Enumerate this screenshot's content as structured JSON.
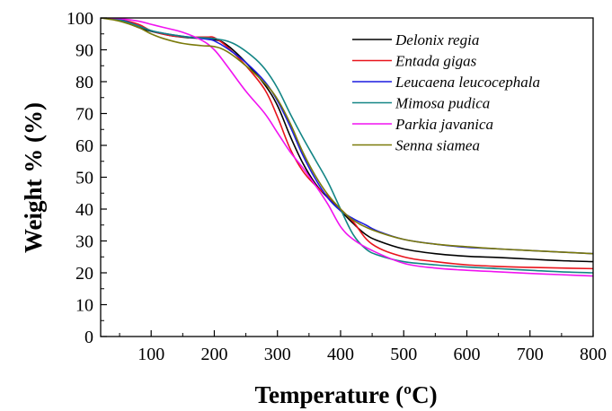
{
  "chart_data": {
    "type": "line",
    "title": "",
    "xlabel": "Temperature (ºC)",
    "ylabel": "Weight % (%)",
    "xlim": [
      20,
      800
    ],
    "ylim": [
      0,
      100
    ],
    "xticks": [
      100,
      200,
      300,
      400,
      500,
      600,
      700,
      800
    ],
    "yticks": [
      0,
      10,
      20,
      30,
      40,
      50,
      60,
      70,
      80,
      90,
      100
    ],
    "grid": false,
    "legend_position": "top-right",
    "series": [
      {
        "name": "Delonix regia",
        "color": "#000000",
        "x": [
          20,
          50,
          80,
          100,
          130,
          160,
          200,
          220,
          250,
          280,
          300,
          320,
          340,
          360,
          380,
          400,
          420,
          440,
          460,
          500,
          550,
          600,
          650,
          700,
          750,
          800
        ],
        "y": [
          100,
          99.3,
          97,
          95.8,
          94.5,
          93.8,
          93.2,
          91.5,
          86,
          79,
          72.5,
          63,
          54.5,
          48,
          43.5,
          39.5,
          35.5,
          32,
          30,
          27.5,
          26,
          25.2,
          24.8,
          24.3,
          23.8,
          23.5
        ]
      },
      {
        "name": "Entada gigas",
        "color": "#e8141c",
        "x": [
          20,
          50,
          80,
          100,
          130,
          160,
          190,
          200,
          220,
          250,
          280,
          300,
          320,
          340,
          360,
          380,
          400,
          420,
          450,
          500,
          550,
          600,
          650,
          700,
          750,
          800
        ],
        "y": [
          100,
          99.5,
          98,
          96,
          94.5,
          94,
          94,
          93.8,
          91,
          85,
          77.5,
          69,
          59,
          52,
          47.5,
          44,
          40,
          36,
          29,
          25,
          23.5,
          22.5,
          22,
          21.7,
          21.5,
          21.3
        ]
      },
      {
        "name": "Leucaena leucocephala",
        "color": "#1c1ce0",
        "x": [
          20,
          50,
          80,
          100,
          130,
          160,
          190,
          200,
          220,
          250,
          280,
          300,
          320,
          340,
          360,
          380,
          400,
          420,
          440,
          460,
          500,
          550,
          600,
          650,
          700,
          750,
          800
        ],
        "y": [
          100,
          99.5,
          97.5,
          96,
          94.8,
          94,
          93.3,
          92.8,
          90.5,
          86,
          80,
          74,
          66,
          57,
          49.5,
          43.5,
          39.5,
          37,
          35,
          33,
          30.5,
          29,
          28,
          27.5,
          27,
          26.5,
          26
        ]
      },
      {
        "name": "Mimosa pudica",
        "color": "#138585",
        "x": [
          20,
          50,
          80,
          100,
          130,
          160,
          200,
          230,
          260,
          280,
          300,
          320,
          340,
          360,
          380,
          400,
          420,
          440,
          460,
          500,
          550,
          600,
          650,
          700,
          750,
          800
        ],
        "y": [
          100,
          99.3,
          97.5,
          96,
          94.8,
          94,
          93.5,
          92,
          88,
          84,
          78,
          70,
          62.5,
          55.5,
          48.5,
          40,
          32,
          27.5,
          25.5,
          23.5,
          22.5,
          21.8,
          21.3,
          20.8,
          20.3,
          20
        ]
      },
      {
        "name": "Parkia javanica",
        "color": "#f013f0",
        "x": [
          20,
          50,
          80,
          100,
          120,
          150,
          180,
          200,
          220,
          250,
          280,
          300,
          320,
          340,
          360,
          380,
          400,
          420,
          450,
          500,
          550,
          600,
          650,
          700,
          750,
          800
        ],
        "y": [
          100,
          99.8,
          99,
          98,
          97,
          95.5,
          93,
          90,
          85,
          77,
          70,
          64,
          58,
          53,
          47.5,
          41.5,
          34.5,
          30.5,
          27,
          23,
          21.5,
          20.8,
          20.3,
          19.8,
          19.4,
          19
        ]
      },
      {
        "name": "Senna siamea",
        "color": "#7a7a0a",
        "x": [
          20,
          50,
          80,
          100,
          120,
          150,
          180,
          200,
          220,
          250,
          280,
          300,
          320,
          340,
          360,
          380,
          400,
          420,
          450,
          500,
          550,
          600,
          650,
          700,
          750,
          800
        ],
        "y": [
          100,
          99,
          97,
          95,
          93.5,
          92,
          91.3,
          91,
          89.5,
          85,
          79.5,
          74.5,
          67,
          58,
          50.5,
          44.5,
          40,
          36.5,
          33.5,
          30.5,
          29,
          28.2,
          27.5,
          27,
          26.5,
          26
        ]
      }
    ]
  }
}
